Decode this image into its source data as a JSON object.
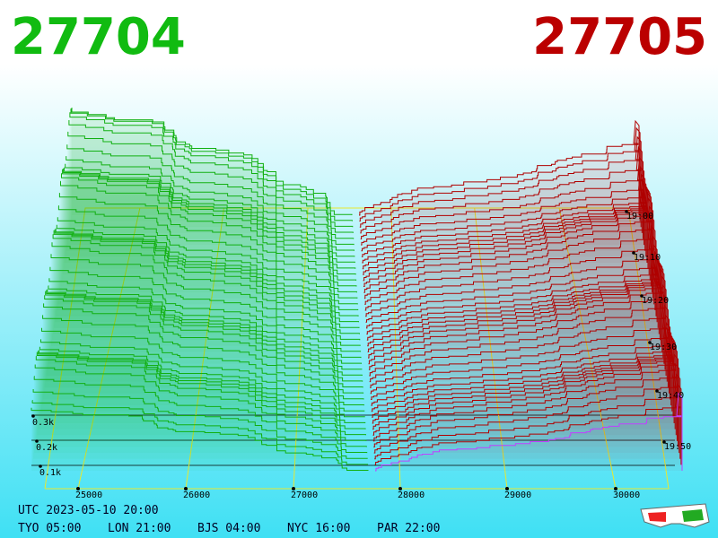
{
  "prices": {
    "bid": "27704",
    "ask": "27705"
  },
  "price_axis": [
    "25000",
    "26000",
    "27000",
    "28000",
    "29000",
    "30000"
  ],
  "depth_axis": [
    "0.3k",
    "0.2k",
    "0.1k"
  ],
  "time_axis": [
    "19:00",
    "19:10",
    "19:20",
    "19:30",
    "19:40",
    "19:50"
  ],
  "footer": {
    "utc": "UTC 2023-05-10 20:00",
    "zones": [
      "TYO 05:00",
      "LON 21:00",
      "BJS 04:00",
      "NYC 16:00",
      "PAR 22:00"
    ]
  }
}
